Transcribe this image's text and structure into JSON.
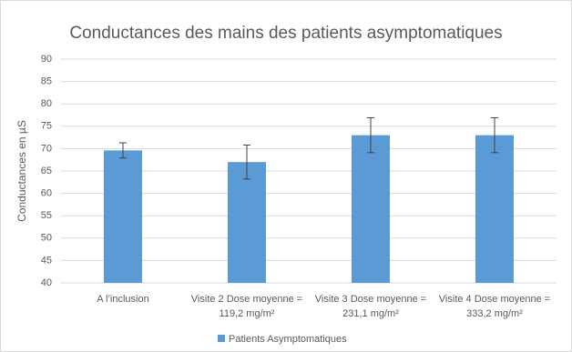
{
  "chart_data": {
    "type": "bar",
    "title": "Conductances des mains des patients asymptomatiques",
    "y_label": "Conductances en µS",
    "categories": [
      "A l’inclusion",
      "Visite 2 Dose moyenne = 119,2 mg/m²",
      "Visite 3 Dose moyenne = 231,1 mg/m²",
      "Visite 4 Dose moyenne = 333,2 mg/m²"
    ],
    "series": [
      {
        "name": "Patients Asymptomatiques",
        "color": "#5b9bd5",
        "values": [
          69.6,
          67,
          73,
          73
        ],
        "errors": [
          1.7,
          3.8,
          3.9,
          3.9
        ]
      }
    ],
    "ylim": [
      40,
      90
    ],
    "yticks": [
      40,
      45,
      50,
      55,
      60,
      65,
      70,
      75,
      80,
      85,
      90
    ],
    "grid": true,
    "legend": "bottom"
  }
}
